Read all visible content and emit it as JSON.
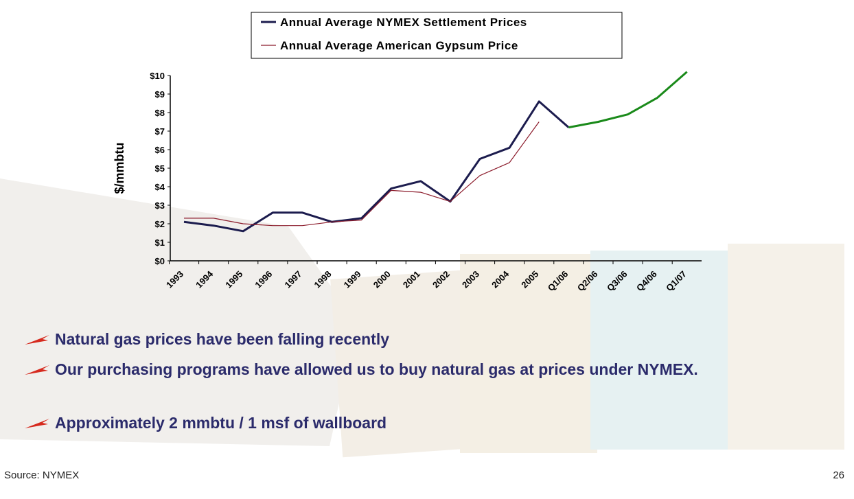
{
  "chart_data": {
    "type": "line",
    "y_label": "$/mmbtu",
    "categories": [
      "1993",
      "1994",
      "1995",
      "1996",
      "1997",
      "1998",
      "1999",
      "2000",
      "2001",
      "2002",
      "2003",
      "2004",
      "2005",
      "Q1/06",
      "Q2/06",
      "Q3/06",
      "Q4/06",
      "Q1/07"
    ],
    "series": [
      {
        "name": "Annual Average NYMEX Settlement Prices",
        "color": "#1c1c4e",
        "values": [
          2.1,
          1.9,
          1.6,
          2.6,
          2.6,
          2.1,
          2.3,
          3.9,
          4.3,
          3.2,
          5.5,
          6.1,
          8.6,
          7.2,
          null,
          null,
          null,
          null
        ]
      },
      {
        "name": "Annual Average American Gypsum Price",
        "color": "#8b1a2a",
        "values": [
          2.3,
          2.3,
          2.0,
          1.9,
          1.9,
          2.1,
          2.2,
          3.8,
          3.7,
          3.2,
          4.6,
          5.3,
          7.5,
          null,
          null,
          null,
          null,
          null
        ]
      },
      {
        "color": "#1a8a1a",
        "values": [
          null,
          null,
          null,
          null,
          null,
          null,
          null,
          null,
          null,
          null,
          null,
          null,
          null,
          7.2,
          7.5,
          7.9,
          8.8,
          10.2
        ]
      }
    ],
    "ylim": [
      0,
      10
    ],
    "yticks": [
      {
        "value": 0,
        "label": "$0"
      },
      {
        "value": 1,
        "label": "$1"
      },
      {
        "value": 2,
        "label": "$2"
      },
      {
        "value": 3,
        "label": "$3"
      },
      {
        "value": 4,
        "label": "$4"
      },
      {
        "value": 5,
        "label": "$5"
      },
      {
        "value": 6,
        "label": "$6"
      },
      {
        "value": 7,
        "label": "$7"
      },
      {
        "value": 8,
        "label": "$8"
      },
      {
        "value": 9,
        "label": "$9"
      },
      {
        "value": 10,
        "label": "$10"
      }
    ],
    "grid": false,
    "legend": "top"
  },
  "bullets": [
    "Natural gas prices have been falling recently",
    "Our purchasing programs have allowed us to buy natural gas at prices under NYMEX.",
    "Approximately 2 mmbtu / 1 msf of wallboard"
  ],
  "source": "Source:  NYMEX",
  "page_number": "26"
}
